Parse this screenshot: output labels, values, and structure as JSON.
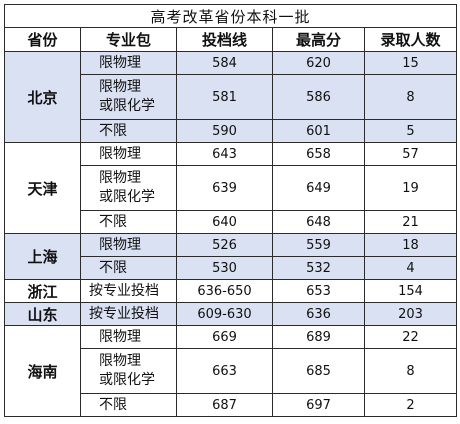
{
  "title": "高考改革省份本科一批",
  "headers": {
    "province": "省份",
    "package": "专业包",
    "cutoff": "投档线",
    "highest": "最高分",
    "admitted": "录取人数"
  },
  "rows": {
    "beijing": {
      "province": "北京",
      "r1": {
        "pkg": "限物理",
        "cutoff": "584",
        "highest": "620",
        "admitted": "15"
      },
      "r2": {
        "pkg_line1": "限物理",
        "pkg_line2": "或限化学",
        "cutoff": "581",
        "highest": "586",
        "admitted": "8"
      },
      "r3": {
        "pkg": "不限",
        "cutoff": "590",
        "highest": "601",
        "admitted": "5"
      }
    },
    "tianjin": {
      "province": "天津",
      "r1": {
        "pkg": "限物理",
        "cutoff": "643",
        "highest": "658",
        "admitted": "57"
      },
      "r2": {
        "pkg_line1": "限物理",
        "pkg_line2": "或限化学",
        "cutoff": "639",
        "highest": "649",
        "admitted": "19"
      },
      "r3": {
        "pkg": "不限",
        "cutoff": "640",
        "highest": "648",
        "admitted": "21"
      }
    },
    "shanghai": {
      "province": "上海",
      "r1": {
        "pkg": "限物理",
        "cutoff": "526",
        "highest": "559",
        "admitted": "18"
      },
      "r2": {
        "pkg": "不限",
        "cutoff": "530",
        "highest": "532",
        "admitted": "4"
      }
    },
    "zhejiang": {
      "province": "浙江",
      "r1": {
        "pkg": "按专业投档",
        "cutoff": "636-650",
        "highest": "653",
        "admitted": "154"
      }
    },
    "shandong": {
      "province": "山东",
      "r1": {
        "pkg": "按专业投档",
        "cutoff": "609-630",
        "highest": "636",
        "admitted": "203"
      }
    },
    "hainan": {
      "province": "海南",
      "r1": {
        "pkg": "限物理",
        "cutoff": "669",
        "highest": "689",
        "admitted": "22"
      },
      "r2": {
        "pkg_line1": "限物理",
        "pkg_line2": "或限化学",
        "cutoff": "663",
        "highest": "685",
        "admitted": "8"
      },
      "r3": {
        "pkg": "不限",
        "cutoff": "687",
        "highest": "697",
        "admitted": "2"
      }
    }
  },
  "colors": {
    "highlight": "#d9e1f2",
    "border": "#2b2b2b"
  }
}
